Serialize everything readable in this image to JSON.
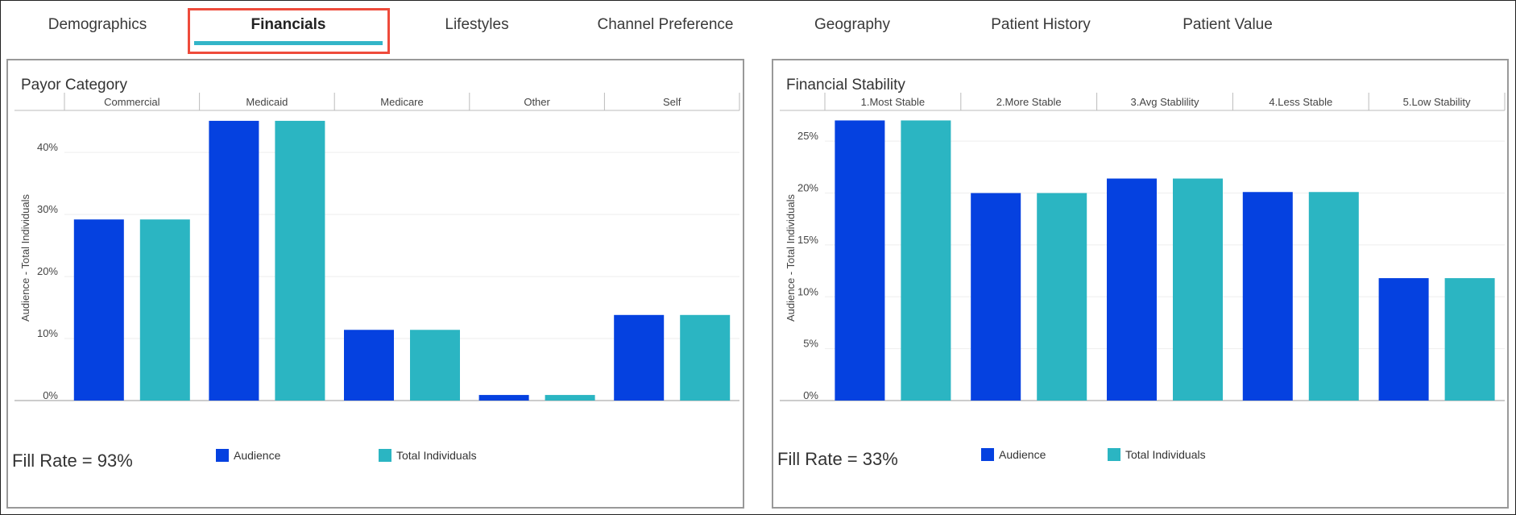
{
  "tabs": [
    {
      "label": "Demographics",
      "active": false
    },
    {
      "label": "Financials",
      "active": true
    },
    {
      "label": "Lifestyles",
      "active": false
    },
    {
      "label": "Channel Preference",
      "active": false
    },
    {
      "label": "Geography",
      "active": false
    },
    {
      "label": "Patient History",
      "active": false
    },
    {
      "label": "Patient Value",
      "active": false
    }
  ],
  "colors": {
    "audience": "#0541e0",
    "total": "#2bb5c2",
    "tab_accent": "#33b5c8",
    "highlight": "#ee4b3b"
  },
  "panels": {
    "payor": {
      "title": "Payor Category",
      "fill_rate": "Fill Rate = 93%"
    },
    "stability": {
      "title": "Financial Stability",
      "fill_rate": "Fill Rate = 33%"
    }
  },
  "legend": {
    "audience": "Audience",
    "total": "Total Individuals"
  },
  "chart_data": [
    {
      "type": "bar",
      "title": "Payor Category",
      "ylabel": "Audience - Total Individuals",
      "categories": [
        "Commercial",
        "Medicaid",
        "Medicare",
        "Other",
        "Self"
      ],
      "yticks": [
        "0%",
        "10%",
        "20%",
        "30%",
        "40%"
      ],
      "ytick_values": [
        0,
        10,
        20,
        30,
        40
      ],
      "ylim": [
        0,
        46
      ],
      "series": [
        {
          "name": "Audience",
          "values": [
            29.2,
            45.1,
            11.4,
            0.9,
            13.8
          ]
        },
        {
          "name": "Total Individuals",
          "values": [
            29.2,
            45.1,
            11.4,
            0.9,
            13.8
          ]
        }
      ],
      "legend": "bottom",
      "grid": true
    },
    {
      "type": "bar",
      "title": "Financial Stability",
      "ylabel": "Audience - Total Individuals",
      "categories": [
        "1.Most Stable",
        "2.More Stable",
        "3.Avg Stablility",
        "4.Less Stable",
        "5.Low Stability"
      ],
      "yticks": [
        "0%",
        "5%",
        "10%",
        "15%",
        "20%",
        "25%"
      ],
      "ytick_values": [
        0,
        5,
        10,
        15,
        20,
        25
      ],
      "ylim": [
        0,
        27.5
      ],
      "series": [
        {
          "name": "Audience",
          "values": [
            27.0,
            20.0,
            21.4,
            20.1,
            11.8
          ]
        },
        {
          "name": "Total Individuals",
          "values": [
            27.0,
            20.0,
            21.4,
            20.1,
            11.8
          ]
        }
      ],
      "legend": "bottom",
      "grid": true
    }
  ]
}
